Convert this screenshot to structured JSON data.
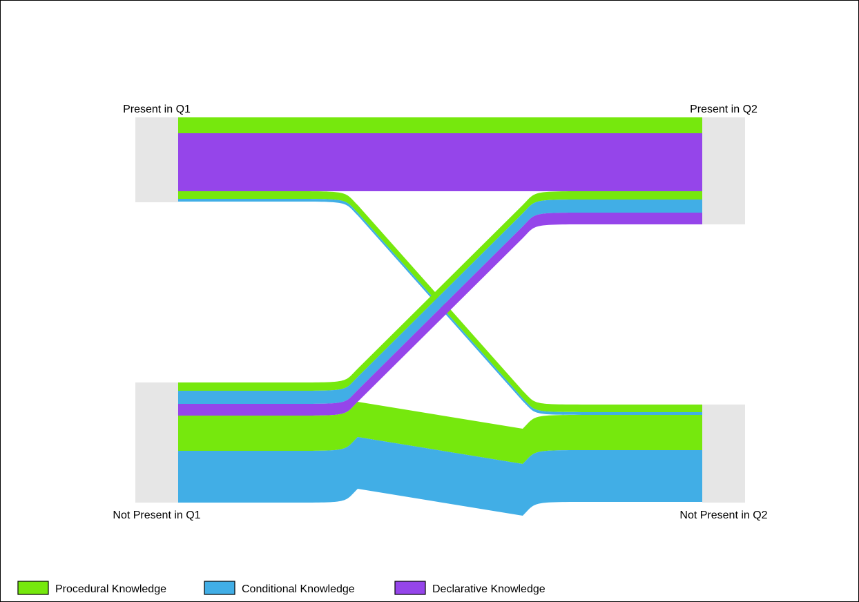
{
  "chart_data": {
    "type": "sankey",
    "title": "",
    "nodes": {
      "left": [
        {
          "id": "present_q1",
          "label": "Present in Q1",
          "total": 123
        },
        {
          "id": "not_present_q1",
          "label": "Not Present in Q1",
          "total": 174
        }
      ],
      "right": [
        {
          "id": "present_q2",
          "label": "Present in Q2",
          "total": 155
        },
        {
          "id": "not_present_q2",
          "label": "Not Present in Q2",
          "total": 142
        }
      ]
    },
    "series": [
      {
        "name": "Procedural Knowledge",
        "color": "#76e80d"
      },
      {
        "name": "Conditional Knowledge",
        "color": "#41aee6"
      },
      {
        "name": "Declarative Knowledge",
        "color": "#9545ea"
      }
    ],
    "flows": [
      {
        "source": "present_q1",
        "target": "present_q2",
        "series": "Procedural Knowledge",
        "value": 23
      },
      {
        "source": "present_q1",
        "target": "present_q2",
        "series": "Declarative Knowledge",
        "value": 84
      },
      {
        "source": "present_q1",
        "target": "not_present_q2",
        "series": "Procedural Knowledge",
        "value": 11
      },
      {
        "source": "present_q1",
        "target": "not_present_q2",
        "series": "Conditional Knowledge",
        "value": 4
      },
      {
        "source": "not_present_q1",
        "target": "present_q2",
        "series": "Procedural Knowledge",
        "value": 12
      },
      {
        "source": "not_present_q1",
        "target": "present_q2",
        "series": "Conditional Knowledge",
        "value": 19
      },
      {
        "source": "not_present_q1",
        "target": "present_q2",
        "series": "Declarative Knowledge",
        "value": 17
      },
      {
        "source": "not_present_q1",
        "target": "not_present_q2",
        "series": "Procedural Knowledge",
        "value": 51
      },
      {
        "source": "not_present_q1",
        "target": "not_present_q2",
        "series": "Conditional Knowledge",
        "value": 75
      }
    ],
    "legend": {
      "position": "bottom-left"
    }
  }
}
